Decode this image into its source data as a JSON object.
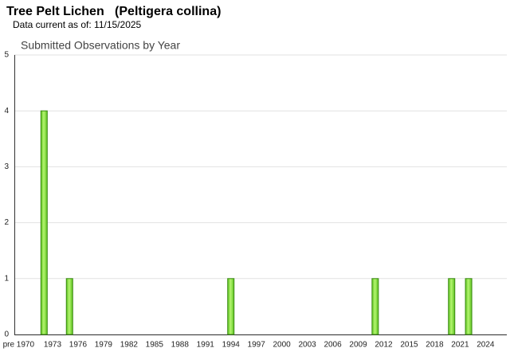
{
  "title": "Tree Pelt Lichen   (Peltigera collina)",
  "subtitle": "Data current as of: 11/15/2025",
  "chart_data": {
    "type": "bar",
    "title": "Submitted Observations by Year",
    "categories": [
      "pre 1970",
      null,
      null,
      null,
      "1973",
      null,
      null,
      "1976",
      null,
      null,
      "1979",
      null,
      null,
      "1982",
      null,
      null,
      "1985",
      null,
      null,
      "1988",
      null,
      null,
      "1991",
      null,
      null,
      "1994",
      null,
      null,
      "1997",
      null,
      null,
      "2000",
      null,
      null,
      "2003",
      null,
      null,
      "2006",
      null,
      null,
      "2009",
      null,
      null,
      "2012",
      null,
      null,
      "2015",
      null,
      null,
      "2018",
      null,
      null,
      "2021",
      null,
      null,
      "2024",
      null,
      null
    ],
    "values": [
      0,
      0,
      0,
      4,
      0,
      0,
      1,
      0,
      0,
      0,
      0,
      0,
      0,
      0,
      0,
      0,
      0,
      0,
      0,
      0,
      0,
      0,
      0,
      0,
      0,
      1,
      0,
      0,
      0,
      0,
      0,
      0,
      0,
      0,
      0,
      0,
      0,
      0,
      0,
      0,
      0,
      0,
      1,
      0,
      0,
      0,
      0,
      0,
      0,
      0,
      0,
      1,
      0,
      1,
      0,
      0,
      0,
      0
    ],
    "color": "#84e03c",
    "ylim": [
      0,
      5
    ],
    "yticks": [
      0,
      1,
      2,
      3,
      4,
      5
    ],
    "grid": true
  }
}
